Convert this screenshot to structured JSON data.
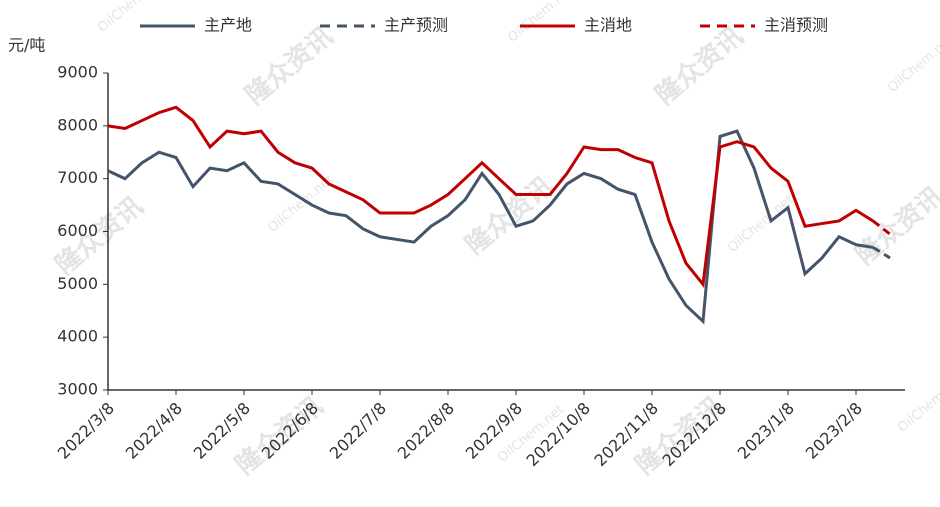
{
  "chart_data": {
    "type": "line",
    "y_label": "元/吨",
    "watermarks": [
      "隆众资讯",
      "OilChem.net"
    ],
    "categories": [
      "2022/3/8",
      null,
      null,
      null,
      "2022/4/8",
      null,
      null,
      null,
      "2022/5/8",
      null,
      null,
      null,
      "2022/6/8",
      null,
      null,
      null,
      "2022/7/8",
      null,
      null,
      null,
      "2022/8/8",
      null,
      null,
      null,
      "2022/9/8",
      null,
      null,
      null,
      "2022/10/8",
      null,
      null,
      null,
      "2022/11/8",
      null,
      null,
      null,
      "2022/12/8",
      null,
      null,
      null,
      "2023/1/8",
      null,
      null,
      null,
      "2023/2/8",
      null,
      null
    ],
    "series": [
      {
        "name": "主产地",
        "color": "#44546a",
        "dash": false,
        "values": [
          7150,
          7000,
          7300,
          7500,
          7400,
          6850,
          7200,
          7150,
          7300,
          6950,
          6900,
          6700,
          6500,
          6350,
          6300,
          6050,
          5900,
          5850,
          5800,
          6100,
          6300,
          6600,
          7100,
          6700,
          6100,
          6200,
          6500,
          6900,
          7100,
          7000,
          6800,
          6700,
          5800,
          5100,
          4600,
          4300,
          7800,
          7900,
          7200,
          6200,
          6450,
          5200,
          5500,
          5900,
          5750,
          5700,
          null
        ]
      },
      {
        "name": "主产预测",
        "color": "#44546a",
        "dash": true,
        "values": [
          null,
          null,
          null,
          null,
          null,
          null,
          null,
          null,
          null,
          null,
          null,
          null,
          null,
          null,
          null,
          null,
          null,
          null,
          null,
          null,
          null,
          null,
          null,
          null,
          null,
          null,
          null,
          null,
          null,
          null,
          null,
          null,
          null,
          null,
          null,
          null,
          null,
          null,
          null,
          null,
          null,
          null,
          null,
          null,
          null,
          5700,
          5500
        ]
      },
      {
        "name": "主消地",
        "color": "#c00000",
        "dash": false,
        "values": [
          8000,
          7950,
          8100,
          8250,
          8350,
          8100,
          7600,
          7900,
          7850,
          7900,
          7500,
          7300,
          7200,
          6900,
          6750,
          6600,
          6350,
          6350,
          6350,
          6500,
          6700,
          7000,
          7300,
          7000,
          6700,
          6700,
          6700,
          7100,
          7600,
          7550,
          7550,
          7400,
          7300,
          6200,
          5400,
          5000,
          7600,
          7700,
          7600,
          7200,
          6950,
          6100,
          6150,
          6200,
          6400,
          6200,
          null
        ]
      },
      {
        "name": "主消预测",
        "color": "#c00000",
        "dash": true,
        "values": [
          null,
          null,
          null,
          null,
          null,
          null,
          null,
          null,
          null,
          null,
          null,
          null,
          null,
          null,
          null,
          null,
          null,
          null,
          null,
          null,
          null,
          null,
          null,
          null,
          null,
          null,
          null,
          null,
          null,
          null,
          null,
          null,
          null,
          null,
          null,
          null,
          null,
          null,
          null,
          null,
          null,
          null,
          null,
          null,
          null,
          6200,
          5950
        ]
      }
    ],
    "ylim": [
      3000,
      9000
    ],
    "yticks": [
      3000,
      4000,
      5000,
      6000,
      7000,
      8000,
      9000
    ],
    "grid": false
  }
}
